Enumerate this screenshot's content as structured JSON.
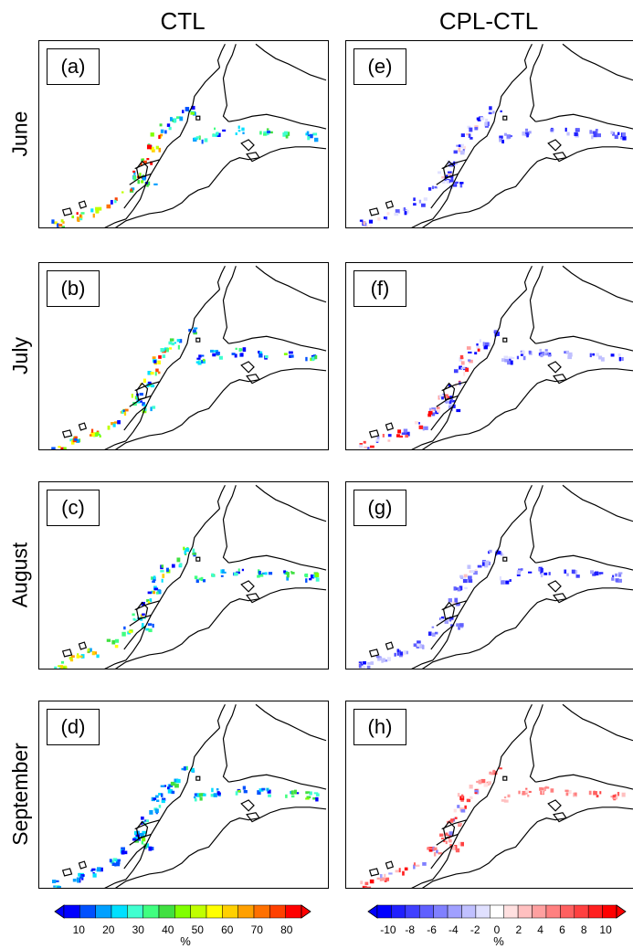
{
  "columns": {
    "left": "CTL",
    "right": "CPL-CTL"
  },
  "rows": [
    {
      "month": "June",
      "left_tag": "(a)",
      "right_tag": "(e)"
    },
    {
      "month": "July",
      "left_tag": "(b)",
      "right_tag": "(f)"
    },
    {
      "month": "August",
      "left_tag": "(c)",
      "right_tag": "(g)"
    },
    {
      "month": "September",
      "left_tag": "(d)",
      "right_tag": "(h)"
    }
  ],
  "colorbars": {
    "left": {
      "ticks": [
        "10",
        "20",
        "30",
        "40",
        "50",
        "60",
        "70",
        "80"
      ],
      "unit": "%",
      "colors": [
        "#0000ff",
        "#0050ff",
        "#00a0ff",
        "#00e0ff",
        "#40ffd0",
        "#40ff80",
        "#40e040",
        "#80ff00",
        "#c0ff00",
        "#ffff00",
        "#ffd000",
        "#ffa000",
        "#ff7000",
        "#ff4000",
        "#ff0000"
      ]
    },
    "right": {
      "ticks": [
        "-10",
        "-8",
        "-6",
        "-4",
        "-2",
        "0",
        "2",
        "4",
        "6",
        "8",
        "10"
      ],
      "unit": "%",
      "colors": [
        "#0000ff",
        "#2020ff",
        "#4040ff",
        "#6060ff",
        "#8080ff",
        "#a0a0ff",
        "#c0c0ff",
        "#e0e0ff",
        "#ffffff",
        "#ffe0e0",
        "#ffc0c0",
        "#ffa0a0",
        "#ff8080",
        "#ff6060",
        "#ff4040",
        "#ff2020",
        "#ff0000"
      ]
    }
  }
}
